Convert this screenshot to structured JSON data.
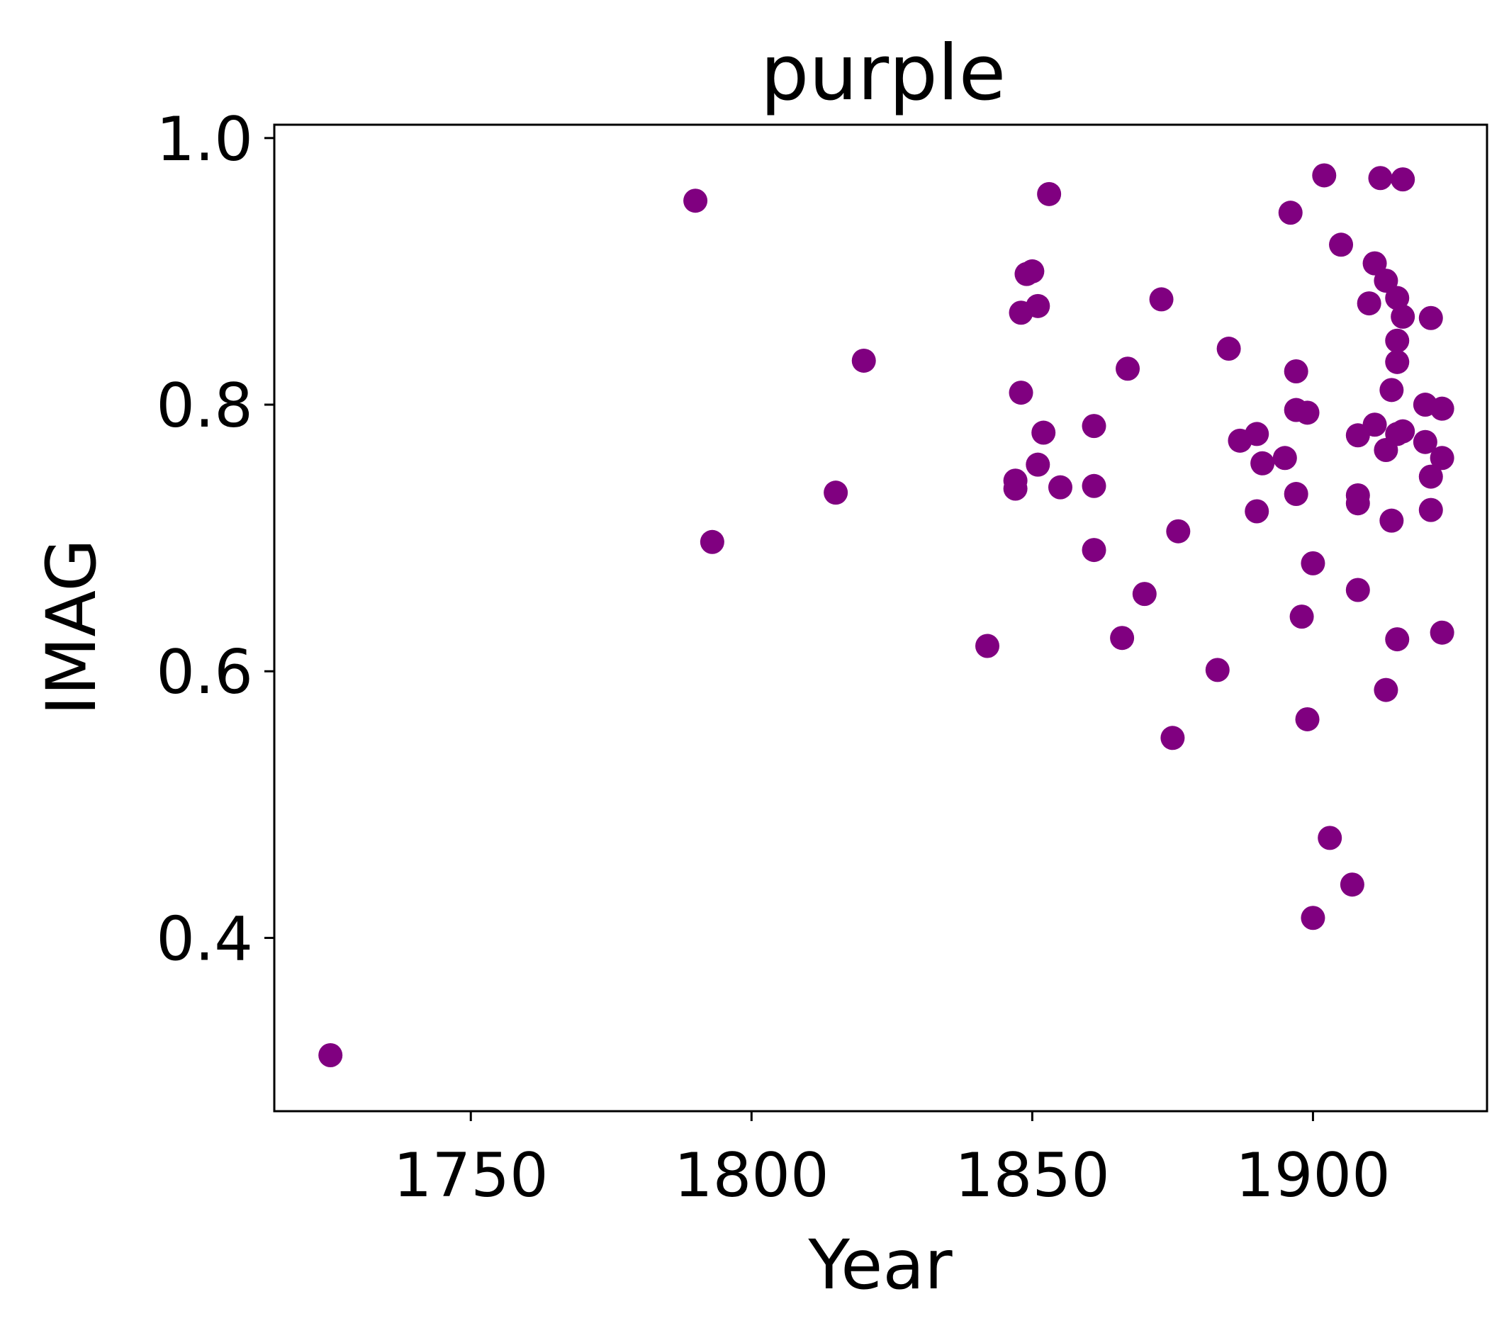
{
  "chart_data": {
    "type": "scatter",
    "title": "purple",
    "xlabel": "Year",
    "ylabel": "IMAG",
    "xlim": [
      1715,
      1931
    ],
    "ylim": [
      0.27,
      1.01
    ],
    "x_ticks": [
      1750,
      1800,
      1850,
      1900
    ],
    "y_ticks": [
      0.4,
      0.6,
      0.8,
      1.0
    ],
    "x_tick_labels": [
      "1750",
      "1800",
      "1850",
      "1900"
    ],
    "y_tick_labels": [
      "0.4",
      "0.6",
      "0.8",
      "1.0"
    ],
    "grid": false,
    "legend": "none",
    "marker_color": "#800080",
    "series": [
      {
        "points": [
          [
            1725,
            0.312
          ],
          [
            1790,
            0.953
          ],
          [
            1793,
            0.697
          ],
          [
            1815,
            0.734
          ],
          [
            1820,
            0.833
          ],
          [
            1842,
            0.619
          ],
          [
            1847,
            0.743
          ],
          [
            1847,
            0.737
          ],
          [
            1848,
            0.869
          ],
          [
            1848,
            0.809
          ],
          [
            1849,
            0.898
          ],
          [
            1850,
            0.9
          ],
          [
            1851,
            0.874
          ],
          [
            1851,
            0.755
          ],
          [
            1852,
            0.779
          ],
          [
            1853,
            0.958
          ],
          [
            1855,
            0.738
          ],
          [
            1861,
            0.784
          ],
          [
            1861,
            0.739
          ],
          [
            1861,
            0.691
          ],
          [
            1866,
            0.625
          ],
          [
            1867,
            0.827
          ],
          [
            1870,
            0.658
          ],
          [
            1873,
            0.879
          ],
          [
            1875,
            0.55
          ],
          [
            1876,
            0.705
          ],
          [
            1883,
            0.601
          ],
          [
            1885,
            0.842
          ],
          [
            1887,
            0.773
          ],
          [
            1890,
            0.72
          ],
          [
            1890,
            0.778
          ],
          [
            1891,
            0.756
          ],
          [
            1895,
            0.76
          ],
          [
            1896,
            0.944
          ],
          [
            1897,
            0.825
          ],
          [
            1897,
            0.796
          ],
          [
            1897,
            0.733
          ],
          [
            1898,
            0.641
          ],
          [
            1899,
            0.794
          ],
          [
            1899,
            0.564
          ],
          [
            1900,
            0.681
          ],
          [
            1900,
            0.415
          ],
          [
            1902,
            0.972
          ],
          [
            1903,
            0.475
          ],
          [
            1905,
            0.92
          ],
          [
            1907,
            0.44
          ],
          [
            1908,
            0.777
          ],
          [
            1908,
            0.732
          ],
          [
            1908,
            0.726
          ],
          [
            1908,
            0.661
          ],
          [
            1910,
            0.876
          ],
          [
            1911,
            0.906
          ],
          [
            1911,
            0.785
          ],
          [
            1912,
            0.97
          ],
          [
            1913,
            0.893
          ],
          [
            1913,
            0.766
          ],
          [
            1913,
            0.586
          ],
          [
            1914,
            0.811
          ],
          [
            1914,
            0.713
          ],
          [
            1915,
            0.88
          ],
          [
            1915,
            0.848
          ],
          [
            1915,
            0.832
          ],
          [
            1915,
            0.778
          ],
          [
            1915,
            0.624
          ],
          [
            1916,
            0.969
          ],
          [
            1916,
            0.866
          ],
          [
            1916,
            0.78
          ],
          [
            1920,
            0.8
          ],
          [
            1920,
            0.772
          ],
          [
            1921,
            0.865
          ],
          [
            1921,
            0.746
          ],
          [
            1921,
            0.721
          ],
          [
            1923,
            0.797
          ],
          [
            1923,
            0.76
          ],
          [
            1923,
            0.629
          ]
        ]
      }
    ]
  }
}
